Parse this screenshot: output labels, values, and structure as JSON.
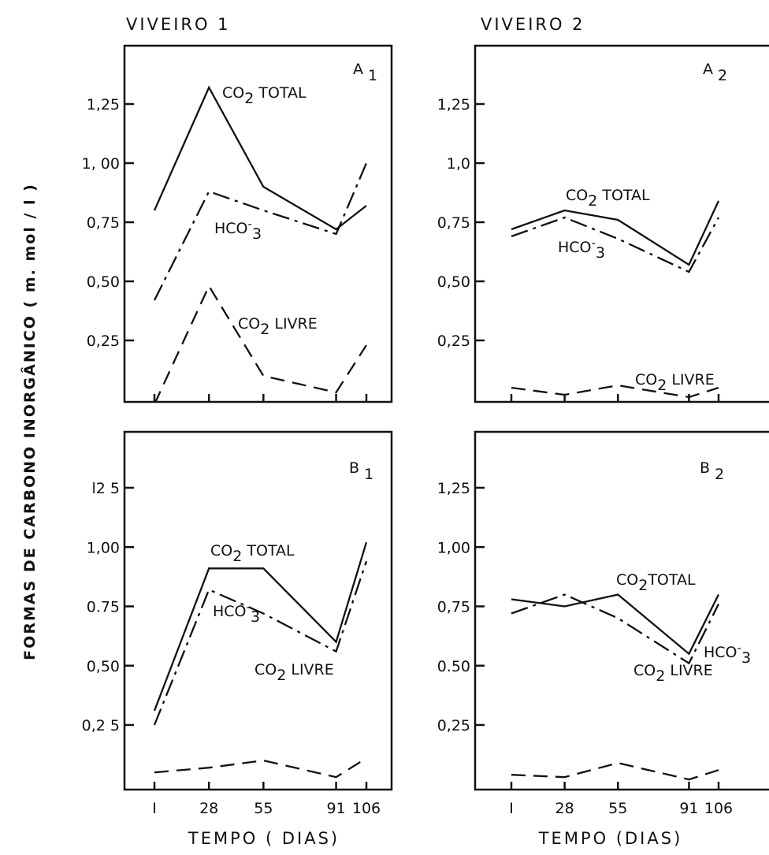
{
  "columns": [
    "VIVEIRO 1",
    "VIVEIRO 2"
  ],
  "y_axis_label": "FORMAS DE CARBONO INORGÂNICO ( m. mol / l )",
  "x_axis_labels": [
    "TEMPO ( DIAS)",
    "TEMPO (DIAS)"
  ],
  "chart_data": [
    {
      "type": "line",
      "panel": "A1",
      "panel_letter": "A",
      "panel_index": "1",
      "x": [
        1,
        28,
        55,
        91,
        106
      ],
      "xticks": [],
      "ylim": [
        0,
        1.45
      ],
      "yticks": [
        {
          "v": 0.25,
          "t": "0,25"
        },
        {
          "v": 0.5,
          "t": "0,50"
        },
        {
          "v": 0.75,
          "t": "0,75"
        },
        {
          "v": 1.0,
          "t": "1, 00"
        },
        {
          "v": 1.25,
          "t": "1,25"
        }
      ],
      "series": [
        {
          "name": "CO2 TOTAL",
          "name_main": "CO",
          "name_sub": "2",
          "name_rest": " TOTAL",
          "style": "solid",
          "values": [
            0.8,
            1.32,
            0.9,
            0.72,
            0.82
          ]
        },
        {
          "name": "HCO-3",
          "name_main": "HCO",
          "name_sup": "-",
          "name_sub": "3",
          "name_rest": "",
          "style": "dashdot",
          "values": [
            0.42,
            0.88,
            0.8,
            0.7,
            1.0
          ]
        },
        {
          "name": "CO2 LIVRE",
          "name_main": "CO",
          "name_sub": "2",
          "name_rest": " LIVRE",
          "style": "dashed",
          "values": [
            -0.02,
            0.48,
            0.1,
            0.03,
            0.23
          ]
        }
      ]
    },
    {
      "type": "line",
      "panel": "A2",
      "panel_letter": "A",
      "panel_index": "2",
      "x": [
        1,
        28,
        55,
        91,
        106
      ],
      "xticks": [],
      "ylim": [
        0,
        1.45
      ],
      "yticks": [
        {
          "v": 0.25,
          "t": "0,25"
        },
        {
          "v": 0.5,
          "t": "0,50"
        },
        {
          "v": 0.75,
          "t": "0,75"
        },
        {
          "v": 1.0,
          "t": "1,0"
        },
        {
          "v": 1.25,
          "t": "1,25"
        }
      ],
      "series": [
        {
          "name": "CO2 TOTAL",
          "name_main": "CO",
          "name_sub": "2",
          "name_rest": "  TOTAL",
          "style": "solid",
          "values": [
            0.72,
            0.8,
            0.76,
            0.57,
            0.84
          ]
        },
        {
          "name": "HCO-3",
          "name_main": "HCO",
          "name_sup": "-",
          "name_sub": "3",
          "name_rest": "",
          "style": "dashdot",
          "values": [
            0.69,
            0.77,
            0.68,
            0.54,
            0.77
          ]
        },
        {
          "name": "CO2 LIVRE",
          "name_main": "CO",
          "name_sub": "2",
          "name_rest": " LIVRE",
          "style": "dashed",
          "values": [
            0.05,
            0.02,
            0.06,
            0.01,
            0.05
          ]
        }
      ]
    },
    {
      "type": "line",
      "panel": "B1",
      "panel_letter": "B",
      "panel_index": "1",
      "x": [
        1,
        28,
        55,
        91,
        106
      ],
      "xticks": [
        "I",
        "28",
        "55",
        "91",
        "106"
      ],
      "ylim": [
        0,
        1.45
      ],
      "yticks": [
        {
          "v": 0.25,
          "t": "0,2 5"
        },
        {
          "v": 0.5,
          "t": "0,50"
        },
        {
          "v": 0.75,
          "t": "0.75"
        },
        {
          "v": 1.0,
          "t": "1,00"
        },
        {
          "v": 1.25,
          "t": "l2 5"
        }
      ],
      "series": [
        {
          "name": "CO2 TOTAL",
          "name_main": "CO",
          "name_sub": "2",
          "name_rest": " TOTAL",
          "style": "solid",
          "values": [
            0.31,
            0.91,
            0.91,
            0.6,
            1.02
          ]
        },
        {
          "name": "HCO-3",
          "name_main": "HCO",
          "name_sup": "-",
          "name_sub": "3",
          "name_rest": "",
          "style": "dashdot",
          "values": [
            0.25,
            0.82,
            0.72,
            0.56,
            0.94
          ]
        },
        {
          "name": "CO2 LIVRE",
          "name_main": "CO",
          "name_sub": "2",
          "name_rest": " LIVRE",
          "style": "dashed",
          "values": [
            0.05,
            0.07,
            0.1,
            0.03,
            0.11
          ]
        }
      ]
    },
    {
      "type": "line",
      "panel": "B2",
      "panel_letter": "B",
      "panel_index": "2",
      "x": [
        1,
        28,
        55,
        91,
        106
      ],
      "xticks": [
        "I",
        "28",
        "55",
        "91",
        "106"
      ],
      "ylim": [
        0,
        1.45
      ],
      "yticks": [
        {
          "v": 0.25,
          "t": "0,25"
        },
        {
          "v": 0.5,
          "t": "0.50"
        },
        {
          "v": 0.75,
          "t": "0,75"
        },
        {
          "v": 1.0,
          "t": "1,00"
        },
        {
          "v": 1.25,
          "t": "1,25"
        }
      ],
      "series": [
        {
          "name": "CO2 TOTAL",
          "name_main": "CO",
          "name_sub": "2",
          "name_rest": "TOTAL",
          "style": "solid",
          "values": [
            0.78,
            0.75,
            0.8,
            0.55,
            0.8
          ]
        },
        {
          "name": "HCO-3",
          "name_main": "HCO",
          "name_sup": "-",
          "name_sub": "3",
          "name_rest": "",
          "style": "dashdot",
          "values": [
            0.72,
            0.8,
            0.7,
            0.51,
            0.76
          ]
        },
        {
          "name": "CO2 LIVRE",
          "name_main": "CO",
          "name_sub": "2",
          "name_rest": " LIVRE",
          "style": "dashed",
          "values": [
            0.04,
            0.03,
            0.09,
            0.02,
            0.06
          ]
        }
      ]
    }
  ]
}
